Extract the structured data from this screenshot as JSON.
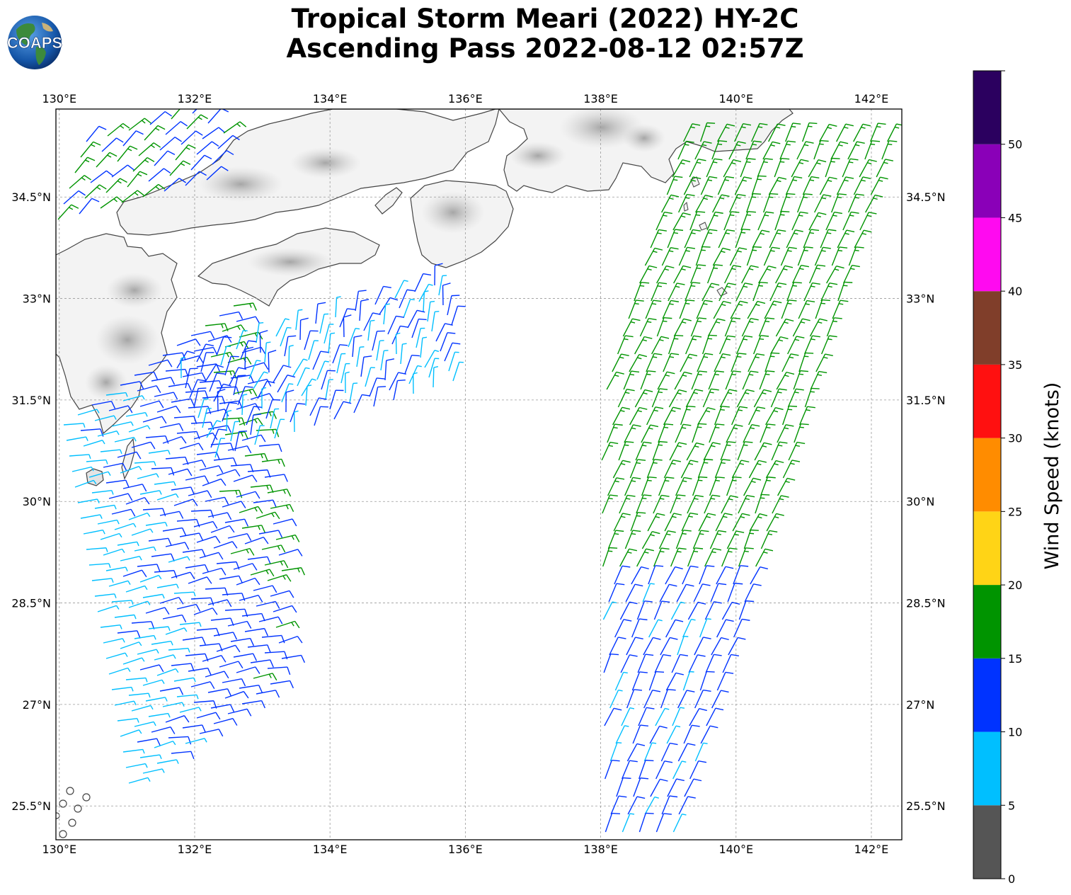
{
  "title_line1": "Tropical Storm Meari (2022) HY-2C",
  "title_line2": "Ascending Pass 2022-08-12 02:57Z",
  "logo_text": "COAPS",
  "map": {
    "lon_labels": [
      "130°E",
      "132°E",
      "134°E",
      "136°E",
      "138°E",
      "140°E",
      "142°E"
    ],
    "lon_values": [
      130,
      132,
      134,
      136,
      138,
      140,
      142
    ],
    "lat_labels": [
      "25.5°N",
      "27°N",
      "28.5°N",
      "30°N",
      "31.5°N",
      "33°N",
      "34.5°N"
    ],
    "lat_values": [
      25.5,
      27,
      28.5,
      30,
      31.5,
      33,
      34.5
    ],
    "lon_range": [
      129.95,
      142.45
    ],
    "lat_range": [
      25.0,
      35.8
    ]
  },
  "colorbar": {
    "label": "Wind Speed (knots)",
    "bins": [
      {
        "from": 0,
        "to": 5,
        "color": "#555555"
      },
      {
        "from": 5,
        "to": 10,
        "color": "#00bfff"
      },
      {
        "from": 10,
        "to": 15,
        "color": "#0033ff"
      },
      {
        "from": 15,
        "to": 20,
        "color": "#009400"
      },
      {
        "from": 20,
        "to": 25,
        "color": "#ffd416"
      },
      {
        "from": 25,
        "to": 30,
        "color": "#ff8c00"
      },
      {
        "from": 30,
        "to": 35,
        "color": "#ff1010"
      },
      {
        "from": 35,
        "to": 40,
        "color": "#803e2a"
      },
      {
        "from": 40,
        "to": 45,
        "color": "#ff0af0"
      },
      {
        "from": 45,
        "to": 50,
        "color": "#8a00b8"
      },
      {
        "from": 50,
        "to": 55,
        "color": "#2b005f"
      }
    ],
    "tick_labels": [
      "0",
      "5",
      "10",
      "15",
      "20",
      "25",
      "30",
      "35",
      "40",
      "45",
      "50"
    ],
    "tick_values": [
      0,
      5,
      10,
      15,
      20,
      25,
      30,
      35,
      40,
      45,
      50
    ],
    "max": 55
  }
}
